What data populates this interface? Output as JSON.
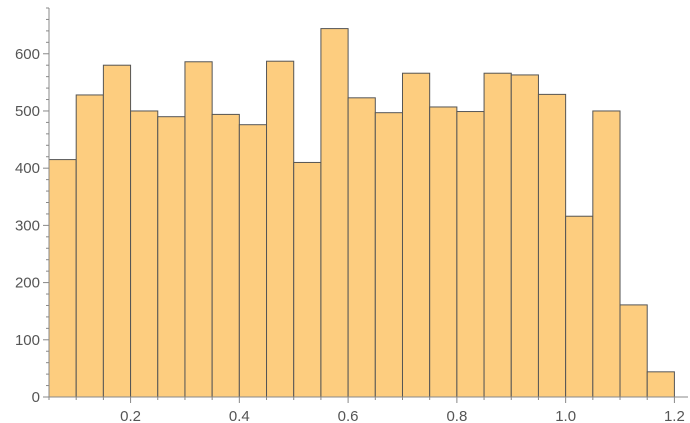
{
  "chart_data": {
    "type": "bar",
    "title": "",
    "xlabel": "",
    "ylabel": "",
    "bin_width": 0.05,
    "bins": [
      {
        "x0": 0.05,
        "x1": 0.1,
        "value": 415
      },
      {
        "x0": 0.1,
        "x1": 0.15,
        "value": 528
      },
      {
        "x0": 0.15,
        "x1": 0.2,
        "value": 580
      },
      {
        "x0": 0.2,
        "x1": 0.25,
        "value": 500
      },
      {
        "x0": 0.25,
        "x1": 0.3,
        "value": 490
      },
      {
        "x0": 0.3,
        "x1": 0.35,
        "value": 586
      },
      {
        "x0": 0.35,
        "x1": 0.4,
        "value": 494
      },
      {
        "x0": 0.4,
        "x1": 0.45,
        "value": 476
      },
      {
        "x0": 0.45,
        "x1": 0.5,
        "value": 587
      },
      {
        "x0": 0.5,
        "x1": 0.55,
        "value": 410
      },
      {
        "x0": 0.55,
        "x1": 0.6,
        "value": 644
      },
      {
        "x0": 0.6,
        "x1": 0.65,
        "value": 523
      },
      {
        "x0": 0.65,
        "x1": 0.7,
        "value": 497
      },
      {
        "x0": 0.7,
        "x1": 0.75,
        "value": 566
      },
      {
        "x0": 0.75,
        "x1": 0.8,
        "value": 507
      },
      {
        "x0": 0.8,
        "x1": 0.85,
        "value": 499
      },
      {
        "x0": 0.85,
        "x1": 0.9,
        "value": 566
      },
      {
        "x0": 0.9,
        "x1": 0.95,
        "value": 563
      },
      {
        "x0": 0.95,
        "x1": 1.0,
        "value": 529
      },
      {
        "x0": 1.0,
        "x1": 1.05,
        "value": 316
      },
      {
        "x0": 1.05,
        "x1": 1.1,
        "value": 500
      },
      {
        "x0": 1.1,
        "x1": 1.15,
        "value": 161
      },
      {
        "x0": 1.15,
        "x1": 1.2,
        "value": 44
      }
    ],
    "xlim": [
      0.05,
      1.225
    ],
    "ylim": [
      0,
      680
    ],
    "x_ticks": [
      0.2,
      0.4,
      0.6,
      0.8,
      1.0,
      1.2
    ],
    "x_tick_labels": [
      "0.2",
      "0.4",
      "0.6",
      "0.8",
      "1.0",
      "1.2"
    ],
    "y_ticks": [
      0,
      100,
      200,
      300,
      400,
      500,
      600
    ],
    "y_tick_labels": [
      "0",
      "100",
      "200",
      "300",
      "400",
      "500",
      "600"
    ],
    "grid": false,
    "colors": {
      "bar_fill": "#fdcd7f",
      "bar_edge": "#555555",
      "axis": "#888888",
      "text": "#555555"
    }
  }
}
